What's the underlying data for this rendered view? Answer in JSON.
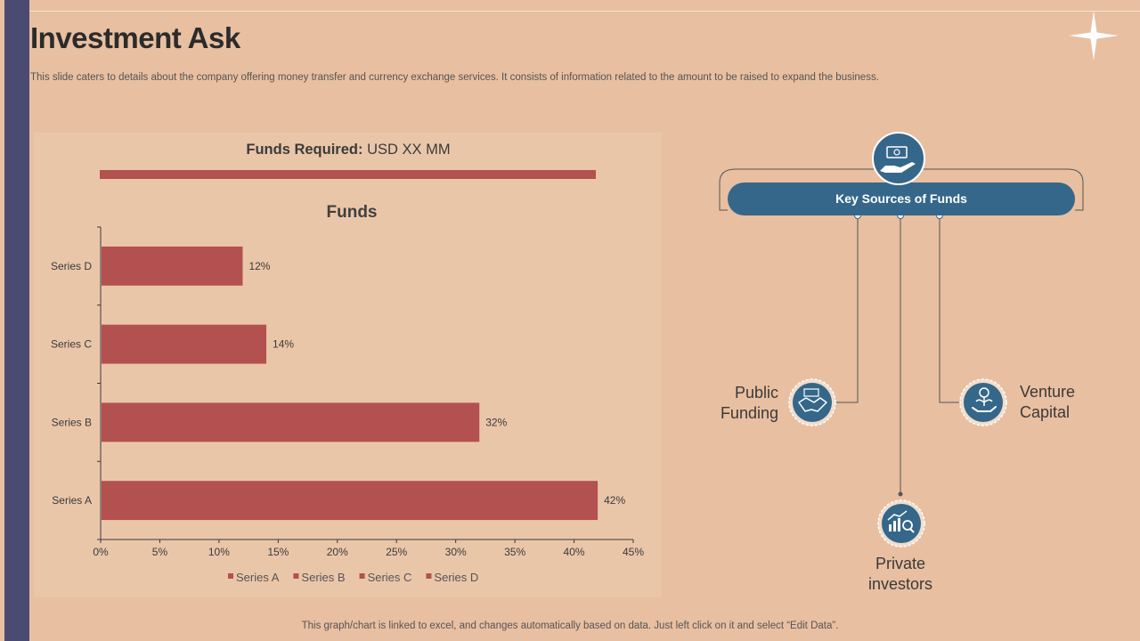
{
  "page": {
    "title": "Investment Ask",
    "subtitle": "This slide caters to details about the company offering money transfer and currency exchange services. It consists of information related to the amount to be raised to expand the business.",
    "footer": "This graph/chart is linked to excel,  and changes automatically based on data. Just left click on it and select “Edit Data”."
  },
  "funds_required": {
    "label": "Funds Required:",
    "value": "USD XX MM"
  },
  "chart_data": {
    "type": "bar",
    "orientation": "horizontal",
    "title": "Funds",
    "categories": [
      "Series A",
      "Series B",
      "Series C",
      "Series D"
    ],
    "values": [
      42,
      32,
      14,
      12
    ],
    "value_labels": [
      "42%",
      "32%",
      "14%",
      "12%"
    ],
    "xlim": [
      0,
      45
    ],
    "x_ticks": [
      0,
      5,
      10,
      15,
      20,
      25,
      30,
      35,
      40,
      45
    ],
    "x_tick_labels": [
      "0%",
      "5%",
      "10%",
      "15%",
      "20%",
      "25%",
      "30%",
      "35%",
      "40%",
      "45%"
    ],
    "legend": [
      "Series A",
      "Series B",
      "Series C",
      "Series D"
    ],
    "legend_position": "bottom",
    "grid": false,
    "bar_color": "#B35050"
  },
  "sources": {
    "title": "Key Sources of Funds",
    "items": [
      {
        "name": "Public Funding",
        "line1": "Public",
        "line2": "Funding",
        "icon": "handshake-icon"
      },
      {
        "name": "Private investors",
        "line1": "Private",
        "line2": "investors",
        "icon": "growth-chart-icon"
      },
      {
        "name": "Venture Capital",
        "line1": "Venture",
        "line2": "Capital",
        "icon": "money-plant-hand-icon"
      }
    ]
  },
  "colors": {
    "background": "#E8BFA0",
    "panel": "#EAC6A9",
    "accent_red": "#B35050",
    "accent_blue": "#35678A",
    "sidebar": "#4A4A72"
  }
}
